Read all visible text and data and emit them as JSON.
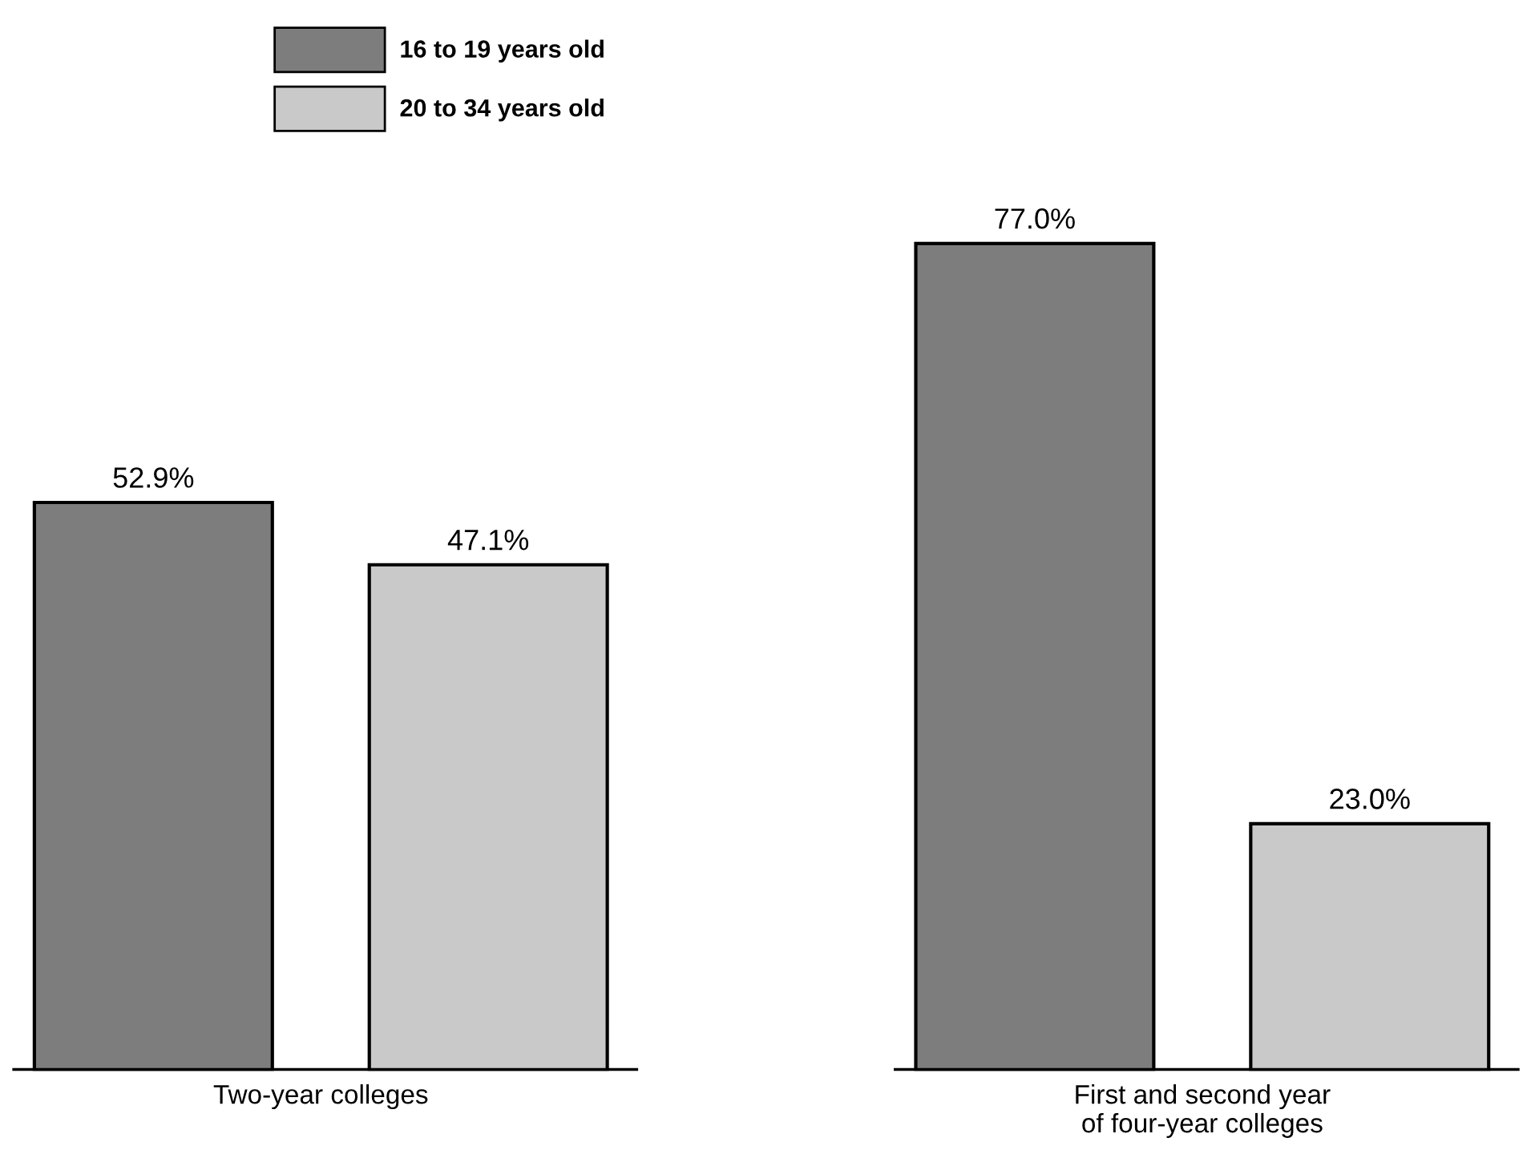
{
  "chart_data": {
    "type": "bar",
    "categories": [
      "Two-year colleges",
      "First and second year\nof four-year colleges"
    ],
    "series": [
      {
        "name": "16 to 19 years old",
        "color": "#7d7d7d",
        "values": [
          52.9,
          77.0
        ],
        "value_labels": [
          "52.9%",
          "77.0%"
        ]
      },
      {
        "name": "20 to 34 years old",
        "color": "#c9c9c9",
        "values": [
          47.1,
          23.0
        ],
        "value_labels": [
          "47.1%",
          "23.0%"
        ]
      }
    ],
    "legend": "top left"
  }
}
